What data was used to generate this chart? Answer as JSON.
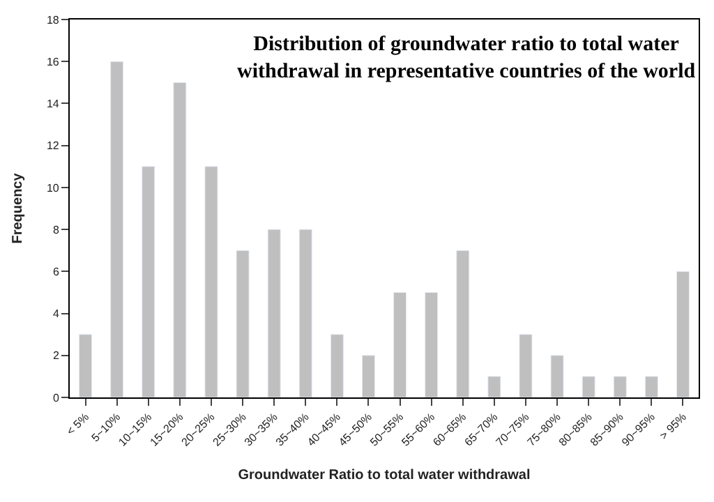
{
  "chart_data": {
    "type": "bar",
    "title": "Distribution of groundwater ratio to total water withdrawal in representative countries of the world",
    "categories": [
      "< 5%",
      "5~10%",
      "10~15%",
      "15~20%",
      "20~25%",
      "25~30%",
      "30~35%",
      "35~40%",
      "40~45%",
      "45~50%",
      "50~55%",
      "55~60%",
      "60~65%",
      "65~70%",
      "70~75%",
      "75~80%",
      "80~85%",
      "85~90%",
      "90~95%",
      "> 95%"
    ],
    "values": [
      3,
      16,
      11,
      15,
      11,
      7,
      8,
      8,
      3,
      2,
      5,
      5,
      7,
      1,
      3,
      2,
      1,
      1,
      1,
      6
    ],
    "color": "#bfbfbf",
    "xlabel": "Groundwater Ratio to total water withdrawal",
    "ylabel": "Frequency",
    "ylim": [
      0,
      18
    ],
    "yticks": [
      0,
      2,
      4,
      6,
      8,
      10,
      12,
      14,
      16,
      18
    ]
  }
}
